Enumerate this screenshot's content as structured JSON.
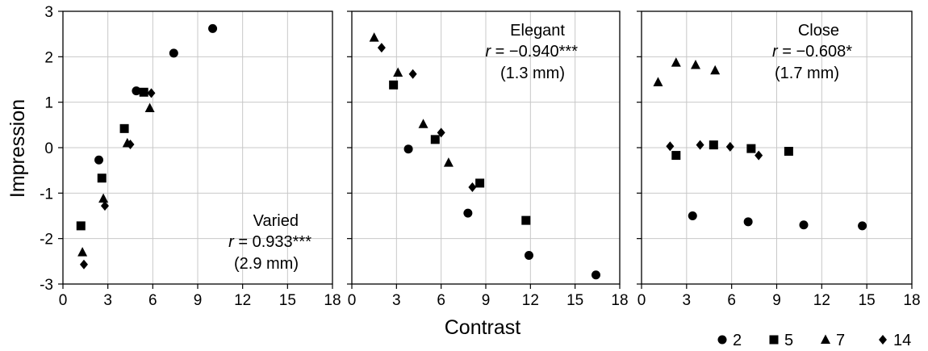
{
  "figure": {
    "ylabel": "Impression",
    "xlabel": "Contrast",
    "legend_placement": "bottom-right",
    "legend": [
      {
        "marker": "circle",
        "label": "2"
      },
      {
        "marker": "square",
        "label": "5"
      },
      {
        "marker": "triangle",
        "label": "7"
      },
      {
        "marker": "diamond",
        "label": "14"
      }
    ],
    "marker_color": "#000000",
    "grid": true
  },
  "chart_data": [
    {
      "type": "scatter",
      "xlim": [
        0,
        18
      ],
      "ylim": [
        -3,
        3
      ],
      "xticks": [
        "0",
        "3",
        "6",
        "9",
        "12",
        "15",
        "18"
      ],
      "yticks": [
        "3",
        "2",
        "1",
        "0",
        "-1",
        "-2",
        "-3"
      ],
      "annotation": {
        "name": "Varied",
        "r_label": "r",
        "r_value": " = 0.933***",
        "detail": "(2.9 mm)"
      },
      "series": [
        {
          "name": "2",
          "marker": "circle",
          "points": [
            [
              2.4,
              -0.27
            ],
            [
              4.9,
              1.25
            ],
            [
              7.4,
              2.08
            ],
            [
              10.0,
              2.62
            ]
          ]
        },
        {
          "name": "5",
          "marker": "square",
          "points": [
            [
              1.2,
              -1.72
            ],
            [
              2.6,
              -0.67
            ],
            [
              4.1,
              0.42
            ],
            [
              5.4,
              1.22
            ]
          ]
        },
        {
          "name": "7",
          "marker": "triangle",
          "points": [
            [
              1.3,
              -2.3
            ],
            [
              2.7,
              -1.12
            ],
            [
              4.3,
              0.1
            ],
            [
              5.8,
              0.87
            ]
          ]
        },
        {
          "name": "14",
          "marker": "diamond",
          "points": [
            [
              1.4,
              -2.57
            ],
            [
              2.8,
              -1.28
            ],
            [
              4.5,
              0.07
            ],
            [
              5.9,
              1.2
            ]
          ]
        }
      ]
    },
    {
      "type": "scatter",
      "xlim": [
        0,
        18
      ],
      "ylim": [
        -3,
        3
      ],
      "xticks": [
        "0",
        "3",
        "6",
        "9",
        "12",
        "15",
        "18"
      ],
      "yticks": [],
      "annotation": {
        "name": "Elegant",
        "r_label": "r",
        "r_value": " = −0.940***",
        "detail": "(1.3 mm)"
      },
      "series": [
        {
          "name": "2",
          "marker": "circle",
          "points": [
            [
              3.8,
              -0.03
            ],
            [
              7.8,
              -1.44
            ],
            [
              11.9,
              -2.37
            ],
            [
              16.4,
              -2.8
            ]
          ]
        },
        {
          "name": "5",
          "marker": "square",
          "points": [
            [
              2.8,
              1.38
            ],
            [
              5.6,
              0.18
            ],
            [
              8.6,
              -0.78
            ],
            [
              11.7,
              -1.6
            ]
          ]
        },
        {
          "name": "7",
          "marker": "triangle",
          "points": [
            [
              1.5,
              2.42
            ],
            [
              3.1,
              1.65
            ],
            [
              4.8,
              0.52
            ],
            [
              6.5,
              -0.33
            ]
          ]
        },
        {
          "name": "14",
          "marker": "diamond",
          "points": [
            [
              2.0,
              2.2
            ],
            [
              4.1,
              1.62
            ],
            [
              6.0,
              0.33
            ],
            [
              8.1,
              -0.87
            ]
          ]
        }
      ]
    },
    {
      "type": "scatter",
      "xlim": [
        0,
        18
      ],
      "ylim": [
        -3,
        3
      ],
      "xticks": [
        "0",
        "3",
        "6",
        "9",
        "12",
        "15",
        "18"
      ],
      "yticks": [],
      "annotation": {
        "name": "Close",
        "r_label": "r",
        "r_value": " = −0.608*",
        "detail": "(1.7 mm)"
      },
      "series": [
        {
          "name": "2",
          "marker": "circle",
          "points": [
            [
              3.4,
              -1.5
            ],
            [
              7.1,
              -1.63
            ],
            [
              10.8,
              -1.7
            ],
            [
              14.7,
              -1.72
            ]
          ]
        },
        {
          "name": "5",
          "marker": "square",
          "points": [
            [
              2.3,
              -0.17
            ],
            [
              4.8,
              0.06
            ],
            [
              7.3,
              -0.02
            ],
            [
              9.8,
              -0.08
            ]
          ]
        },
        {
          "name": "7",
          "marker": "triangle",
          "points": [
            [
              1.1,
              1.44
            ],
            [
              2.3,
              1.87
            ],
            [
              3.6,
              1.82
            ],
            [
              4.9,
              1.7
            ]
          ]
        },
        {
          "name": "14",
          "marker": "diamond",
          "points": [
            [
              1.9,
              0.03
            ],
            [
              3.9,
              0.06
            ],
            [
              5.9,
              0.02
            ],
            [
              7.8,
              -0.17
            ]
          ]
        }
      ]
    }
  ]
}
